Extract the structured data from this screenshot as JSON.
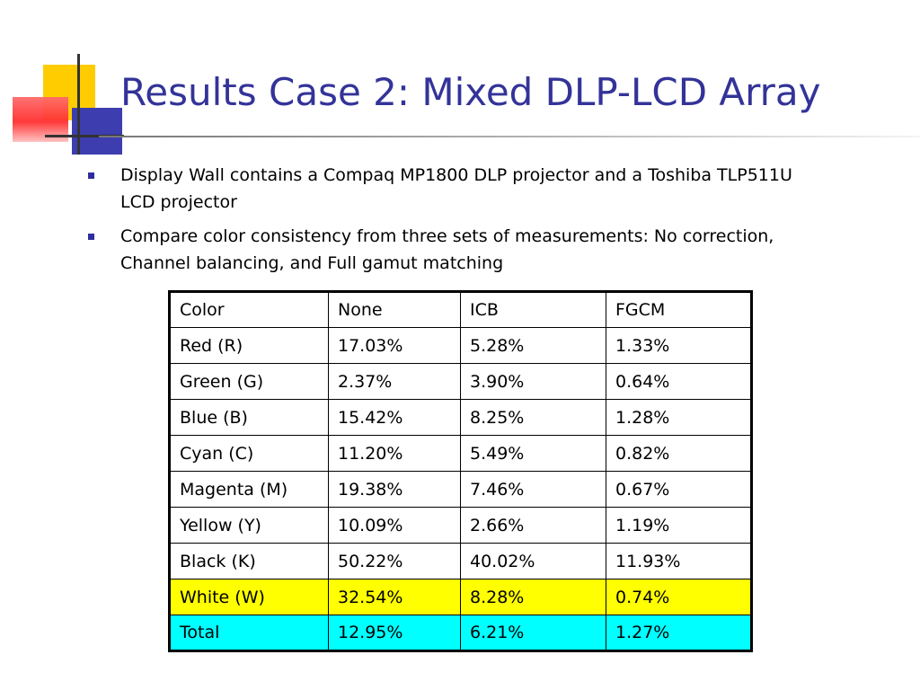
{
  "slide": {
    "title": "Results Case 2: Mixed DLP-LCD Array",
    "bullets": [
      "Display Wall contains a Compaq MP1800 DLP projector and a Toshiba TLP511U LCD projector",
      "Compare color consistency from three sets of measurements: No correction, Channel balancing, and Full gamut matching"
    ]
  },
  "table": {
    "headers": [
      "Color",
      "None",
      "ICB",
      "FGCM"
    ],
    "rows": [
      [
        "Red (R)",
        "17.03%",
        "5.28%",
        "1.33%"
      ],
      [
        "Green (G)",
        "2.37%",
        "3.90%",
        "0.64%"
      ],
      [
        "Blue (B)",
        "15.42%",
        "8.25%",
        "1.28%"
      ],
      [
        "Cyan (C)",
        "11.20%",
        "5.49%",
        "0.82%"
      ],
      [
        "Magenta (M)",
        "19.38%",
        "7.46%",
        "0.67%"
      ],
      [
        "Yellow (Y)",
        "10.09%",
        "2.66%",
        "1.19%"
      ],
      [
        "Black (K)",
        "50.22%",
        "40.02%",
        "11.93%"
      ],
      [
        "White (W)",
        "32.54%",
        "8.28%",
        "0.74%"
      ],
      [
        "Total",
        "12.95%",
        "6.21%",
        "1.27%"
      ]
    ]
  },
  "colors": {
    "title": "#333399",
    "bullet_marker": "#2e2e9e",
    "highlight_white_row": "#ffff00",
    "highlight_total_row": "#00ffff"
  },
  "icons": {
    "logo": "colored-squares-logo"
  }
}
